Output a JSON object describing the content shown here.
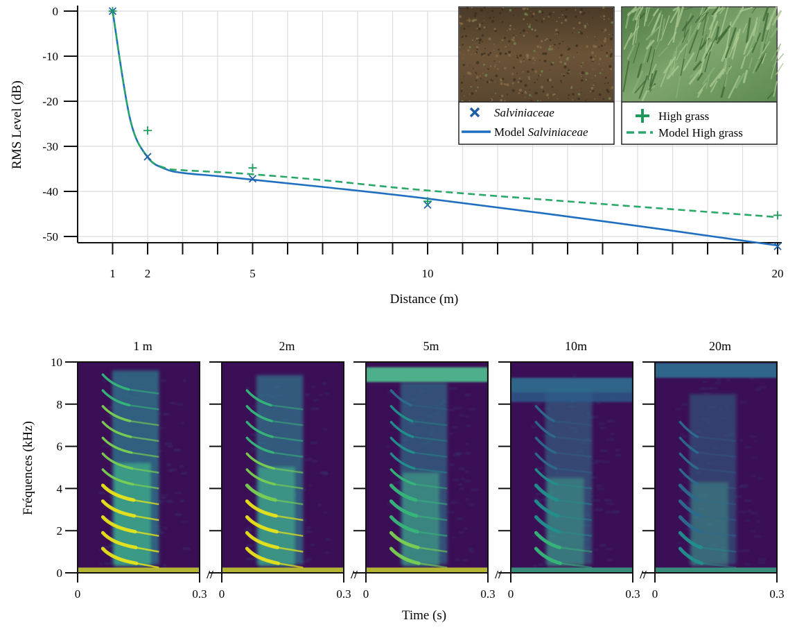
{
  "chart_data": [
    {
      "type": "line",
      "xlabel": "Distance (m)",
      "ylabel": "RMS Level (dB)",
      "xlim": [
        0,
        20.2
      ],
      "ylim": [
        -53,
        0.2
      ],
      "x_ticks": [
        "1",
        "2",
        "5",
        "10",
        "20"
      ],
      "x_tick_values": [
        1,
        2,
        5,
        10,
        20
      ],
      "y_ticks": [
        "0",
        "-10",
        "-20",
        "-30",
        "-40",
        "-50"
      ],
      "y_tick_values": [
        0,
        -10,
        -20,
        -30,
        -40,
        -50
      ],
      "grid": true,
      "series": [
        {
          "name": "Salviniaceae",
          "kind": "measured",
          "marker": "x",
          "color": "#1f5fa8",
          "x": [
            1,
            2,
            5,
            10,
            20
          ],
          "y": [
            0,
            -32.3,
            -37.2,
            -43.0,
            -52.2
          ]
        },
        {
          "name": "Model Salviniaceae",
          "kind": "model",
          "line": "solid",
          "color": "#1f6fc0",
          "x": [
            1,
            1.5,
            2,
            2.5,
            3,
            4,
            5,
            7,
            10,
            15,
            20
          ],
          "y": [
            0,
            -24.0,
            -32.4,
            -35.0,
            -35.9,
            -36.6,
            -37.4,
            -39.0,
            -41.6,
            -46.6,
            -52.0
          ]
        },
        {
          "name": "High grass",
          "kind": "measured",
          "marker": "+",
          "color": "#1a9a5a",
          "x": [
            1,
            2,
            5,
            10,
            20
          ],
          "y": [
            0,
            -26.5,
            -34.8,
            -42.2,
            -45.3
          ]
        },
        {
          "name": "Model High grass",
          "kind": "model",
          "line": "dashed",
          "color": "#2aa86a",
          "x": [
            1,
            1.5,
            2,
            2.5,
            3,
            4,
            5,
            7,
            10,
            15,
            20
          ],
          "y": [
            0,
            -24.0,
            -32.4,
            -34.8,
            -35.3,
            -35.7,
            -36.2,
            -37.5,
            -39.8,
            -42.8,
            -45.7
          ]
        }
      ],
      "legends": [
        {
          "photo": "salviniaceae-photo",
          "entries": [
            {
              "symbol": "x",
              "label": "Salviniaceae",
              "italic": true
            },
            {
              "symbol": "solid",
              "label_prefix": "Model ",
              "label_italic": "Salviniaceae"
            }
          ]
        },
        {
          "photo": "high-grass-photo",
          "entries": [
            {
              "symbol": "+",
              "label": "High grass"
            },
            {
              "symbol": "dashed",
              "label": "Model High grass"
            }
          ]
        }
      ]
    },
    {
      "type": "heatmap",
      "subtype": "spectrogram",
      "xlabel": "Time (s)",
      "ylabel": "Fréquences (kHz)",
      "xlim": [
        0,
        0.3
      ],
      "ylim": [
        0,
        10
      ],
      "x_ticks": [
        "0",
        "0.3"
      ],
      "y_ticks": [
        "0",
        "2",
        "4",
        "6",
        "8",
        "10"
      ],
      "panels": [
        {
          "title": "1 m",
          "distance_m": 1,
          "intensity": 1.0,
          "noise_band_khz": 0
        },
        {
          "title": "2m",
          "distance_m": 2,
          "intensity": 0.85,
          "noise_band_khz": 0
        },
        {
          "title": "5m",
          "distance_m": 5,
          "intensity": 0.62,
          "noise_band_khz": 9.4
        },
        {
          "title": "10m",
          "distance_m": 10,
          "intensity": 0.42,
          "noise_band_khz": 8.9
        },
        {
          "title": "20m",
          "distance_m": 20,
          "intensity": 0.25,
          "noise_band_khz": 9.6
        }
      ],
      "axis_break": "//"
    }
  ]
}
